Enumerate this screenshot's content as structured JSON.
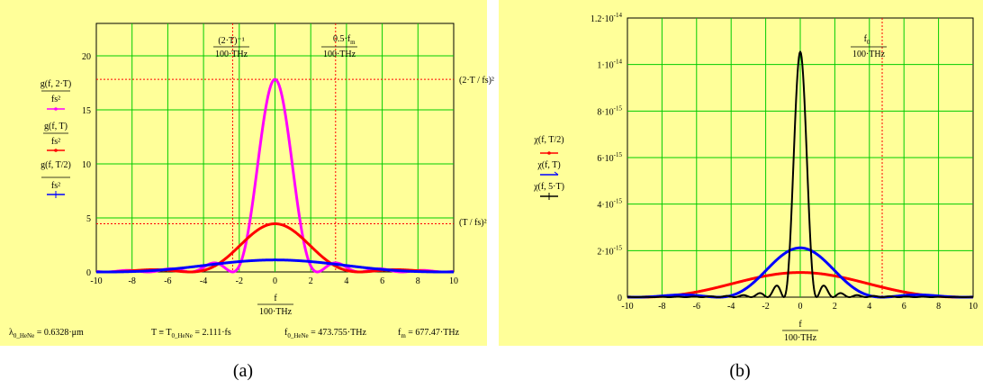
{
  "panels": {
    "a": {
      "caption": "(a)",
      "xaxis_label": "f",
      "xaxis_unit": "100·THz",
      "y_legend": [
        {
          "num": "g(f, 2·T)",
          "den": "fs²",
          "color": "#ff00ff"
        },
        {
          "num": "g(f, T)",
          "den": "fs²",
          "color": "#ff0000"
        },
        {
          "num": "g(f, T/2)",
          "den": "fs²",
          "color": "#0000ff"
        }
      ],
      "markers": {
        "v1_top": "(2·T)⁻¹",
        "v1_bot": "100·THz",
        "v2_top": "0.5·f",
        "v2_sub": "m",
        "v2_bot": "100·THz",
        "h1": "(2·T / fs)²",
        "h2": "(T / fs)²"
      },
      "formulas": [
        {
          "main": "λ",
          "sub": "0_HeNe",
          "rest": " = 0.6328·μm"
        },
        {
          "main": "T ≡ T",
          "sub": "0_HeNe",
          "rest": " = 2.111·fs"
        },
        {
          "main": "f",
          "sub": "0_HeNe",
          "rest": " = 473.755·THz"
        },
        {
          "main": "f",
          "sub": "m",
          "rest": " = 677.47·THz"
        }
      ]
    },
    "b": {
      "caption": "(b)",
      "xaxis_label": "f",
      "xaxis_unit": "100·THz",
      "y_legend": [
        {
          "text": "χ(f, T/2)",
          "color": "#ff0000"
        },
        {
          "text": "χ(f, T)",
          "color": "#0000ff"
        },
        {
          "text": "χ(f, 5·T)",
          "color": "#000000"
        }
      ],
      "markers": {
        "v_top": "f",
        "v_sub": "0",
        "v_bot": "100·THz"
      }
    }
  },
  "chart_data": [
    {
      "type": "line",
      "xlim": [
        -10,
        10
      ],
      "ylim": [
        0,
        23
      ],
      "xticks": [
        -10,
        -8,
        -6,
        -4,
        -2,
        0,
        2,
        4,
        6,
        8,
        10
      ],
      "yticks": [
        0,
        5,
        10,
        15,
        20
      ],
      "ytick_labels": [
        "0",
        "5",
        "10",
        "15",
        "20"
      ],
      "grid": true,
      "ref_lines": {
        "vertical": [
          -2.37,
          3.39
        ],
        "horizontal": [
          17.82,
          4.46
        ]
      },
      "series": [
        {
          "name": "g(f, 2·T)/fs²",
          "color": "#ff00ff",
          "model": "sinc2",
          "amp": 17.82,
          "zero": 2.369
        },
        {
          "name": "g(f, T)/fs²",
          "color": "#ff0000",
          "model": "sinc2",
          "amp": 4.46,
          "zero": 4.737
        },
        {
          "name": "g(f, T/2)/fs²",
          "color": "#0000ff",
          "model": "sinc2",
          "amp": 1.11,
          "zero": 9.47
        }
      ]
    },
    {
      "type": "line",
      "xlim": [
        -10,
        10
      ],
      "ylim": [
        0,
        1.2e-14
      ],
      "xticks": [
        -10,
        -8,
        -6,
        -4,
        -2,
        0,
        2,
        4,
        6,
        8,
        10
      ],
      "yticks": [
        0,
        2e-15,
        4e-15,
        6e-15,
        8e-15,
        1e-14,
        1.2e-14
      ],
      "ytick_labels": [
        {
          "mant": "0",
          "exp": ""
        },
        {
          "mant": "2·10",
          "exp": "-15"
        },
        {
          "mant": "4·10",
          "exp": "-15"
        },
        {
          "mant": "6·10",
          "exp": "-15"
        },
        {
          "mant": "8·10",
          "exp": "-15"
        },
        {
          "mant": "1·10",
          "exp": "-14"
        },
        {
          "mant": "1.2·10",
          "exp": "-14"
        }
      ],
      "grid": true,
      "ref_lines": {
        "vertical": [
          4.74
        ]
      },
      "series": [
        {
          "name": "χ(f, T/2)",
          "color": "#ff0000",
          "model": "sinc2",
          "amp": 1.06e-15,
          "zero": 9.47
        },
        {
          "name": "χ(f, T)",
          "color": "#0000ff",
          "model": "sinc2",
          "amp": 2.12e-15,
          "zero": 4.737
        },
        {
          "name": "χ(f, 5·T)",
          "color": "#000000",
          "model": "sinc2",
          "amp": 1.055e-14,
          "zero": 0.947
        }
      ]
    }
  ]
}
